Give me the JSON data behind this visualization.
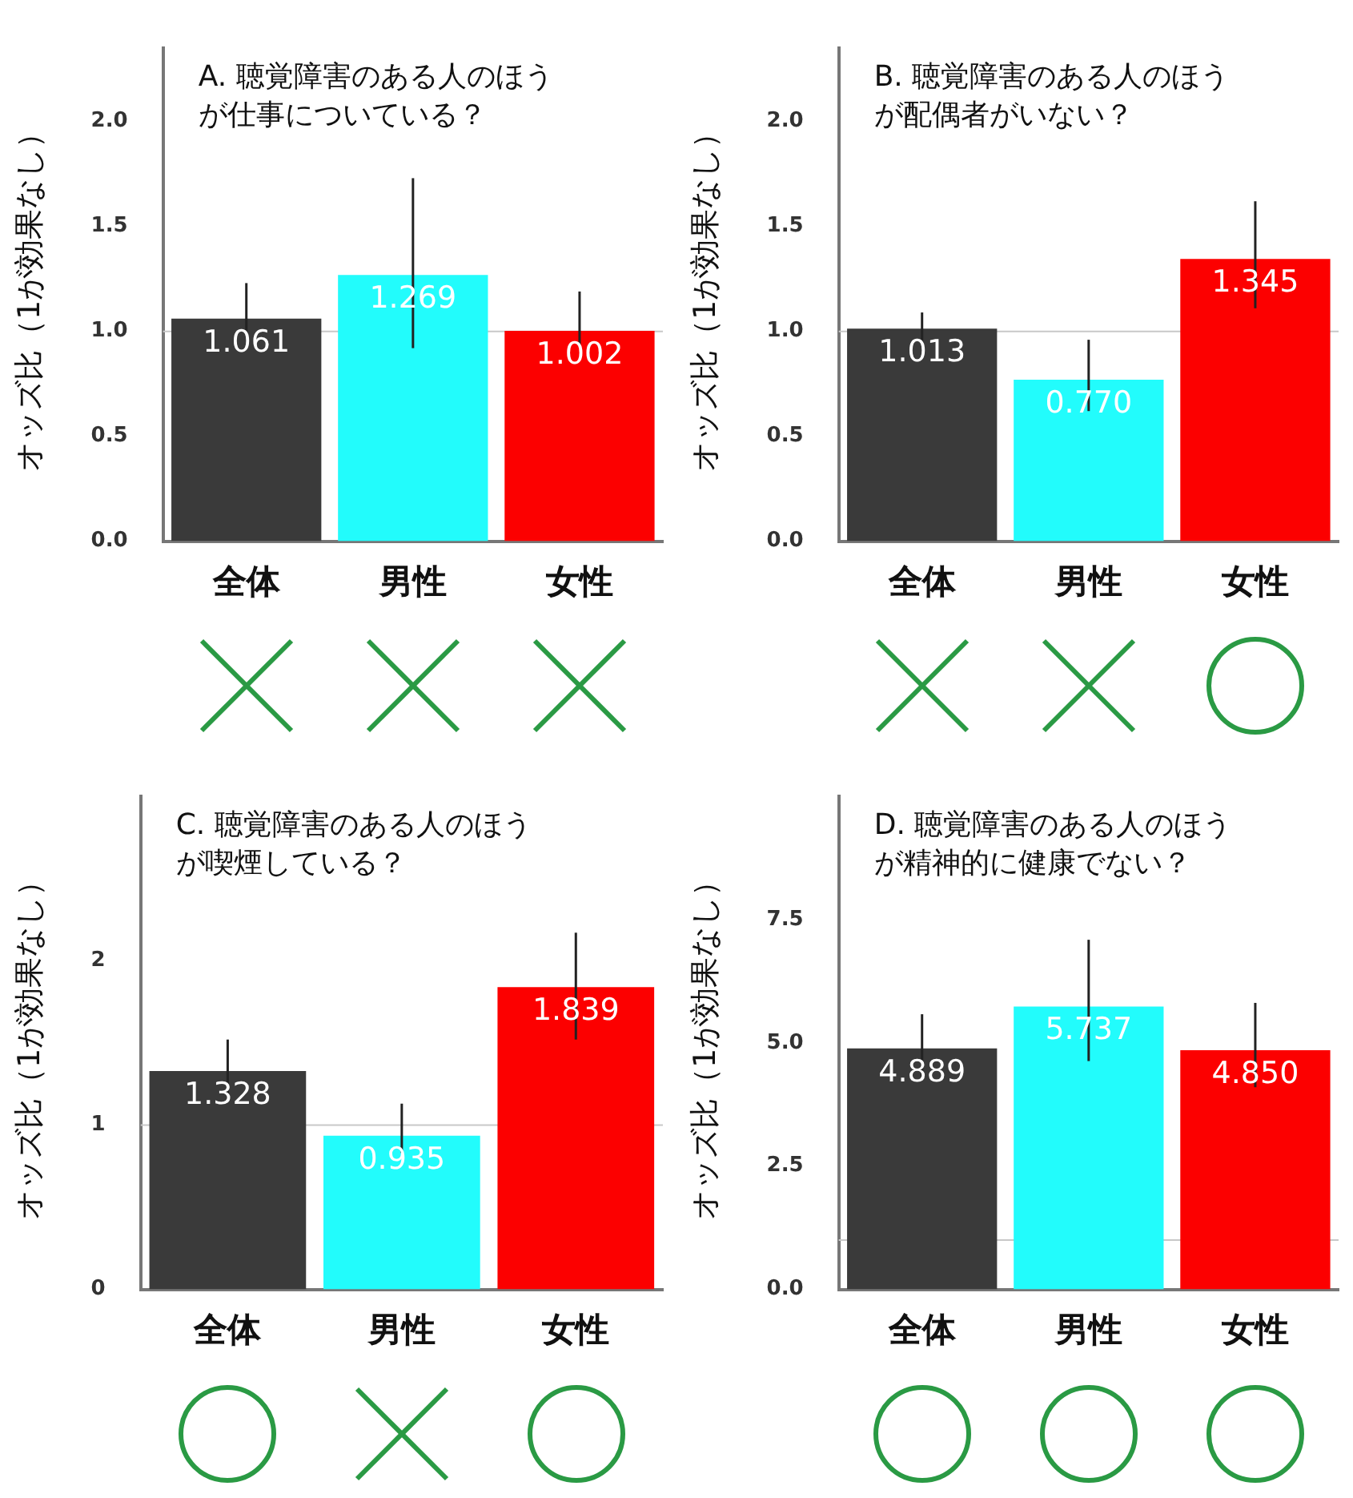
{
  "chart_data": [
    {
      "type": "bar",
      "title": "A. 聴覚障害のある人のほうが仕事についている？",
      "ylabel": "オッズ比（1が効果なし）",
      "categories": [
        "全体",
        "男性",
        "女性"
      ],
      "values": [
        1.061,
        1.269,
        1.002
      ],
      "colors": [
        "#3a3a3a",
        "#22fcfc",
        "#fc0000"
      ],
      "value_labels": [
        "1.061",
        "1.269",
        "1.002"
      ],
      "errors": [
        [
          0.98,
          1.23
        ],
        [
          0.92,
          1.73
        ],
        [
          0.93,
          1.19
        ]
      ],
      "ylim": [
        0,
        2.35
      ],
      "yticks": [
        {
          "value": 0,
          "label": "0.0"
        },
        {
          "value": 0.5,
          "label": "0.5"
        },
        {
          "value": 1,
          "label": "1.0"
        },
        {
          "value": 1.5,
          "label": "1.5"
        },
        {
          "value": 2,
          "label": "2.0"
        }
      ],
      "ref_lines": [
        {
          "axis": "y",
          "value": 1,
          "color": "#c8c8c8"
        }
      ],
      "grid": false,
      "legend": false
    },
    {
      "type": "bar",
      "title": "B. 聴覚障害のある人のほうが配偶者がいない？",
      "ylabel": "オッズ比（1が効果なし）",
      "categories": [
        "全体",
        "男性",
        "女性"
      ],
      "values": [
        1.013,
        0.77,
        1.345
      ],
      "colors": [
        "#3a3a3a",
        "#22fcfc",
        "#fc0000"
      ],
      "value_labels": [
        "1.013",
        "0.770",
        "1.345"
      ],
      "errors": [
        [
          0.94,
          1.09
        ],
        [
          0.62,
          0.96
        ],
        [
          1.11,
          1.62
        ]
      ],
      "ylim": [
        0,
        2.35
      ],
      "yticks": [
        {
          "value": 0,
          "label": "0.0"
        },
        {
          "value": 0.5,
          "label": "0.5"
        },
        {
          "value": 1,
          "label": "1.0"
        },
        {
          "value": 1.5,
          "label": "1.5"
        },
        {
          "value": 2,
          "label": "2.0"
        }
      ],
      "ref_lines": [
        {
          "axis": "y",
          "value": 1,
          "color": "#c8c8c8"
        }
      ],
      "grid": false,
      "legend": false
    },
    {
      "type": "bar",
      "title": "C. 聴覚障害のある人のほうが喫煙している？",
      "ylabel": "オッズ比（1が効果なし）",
      "categories": [
        "全体",
        "男性",
        "女性"
      ],
      "values": [
        1.328,
        0.935,
        1.839
      ],
      "colors": [
        "#3a3a3a",
        "#22fcfc",
        "#fc0000"
      ],
      "value_labels": [
        "1.328",
        "0.935",
        "1.839"
      ],
      "errors": [
        [
          1.15,
          1.52
        ],
        [
          0.83,
          1.13
        ],
        [
          1.52,
          2.17
        ]
      ],
      "ylim": [
        0,
        3
      ],
      "yticks": [
        0,
        1,
        2
      ],
      "ref_lines": [
        {
          "axis": "y",
          "value": 1,
          "color": "#c8c8c8"
        }
      ],
      "grid": false,
      "legend": false
    },
    {
      "type": "bar",
      "title": "D. 聴覚障害のある人のほうが精神的に健康でない？",
      "ylabel": "オッズ比（1が効果なし）",
      "categories": [
        "全体",
        "男性",
        "女性"
      ],
      "values": [
        4.889,
        5.737,
        4.85
      ],
      "colors": [
        "#3a3a3a",
        "#22fcfc",
        "#fc0000"
      ],
      "value_labels": [
        "4.889",
        "5.737",
        "4.850"
      ],
      "errors": [
        [
          4.3,
          5.58
        ],
        [
          4.63,
          7.09
        ],
        [
          4.1,
          5.81
        ]
      ],
      "ylim": [
        0,
        10
      ],
      "yticks": [
        {
          "value": 0,
          "label": "0.0"
        },
        {
          "value": 2.5,
          "label": "2.5"
        },
        {
          "value": 5,
          "label": "5.0"
        },
        {
          "value": 7.5,
          "label": "7.5"
        }
      ],
      "ref_lines": [
        {
          "axis": "y",
          "value": 1,
          "color": "#c8c8c8"
        }
      ],
      "grid": false,
      "legend": false
    }
  ]
}
